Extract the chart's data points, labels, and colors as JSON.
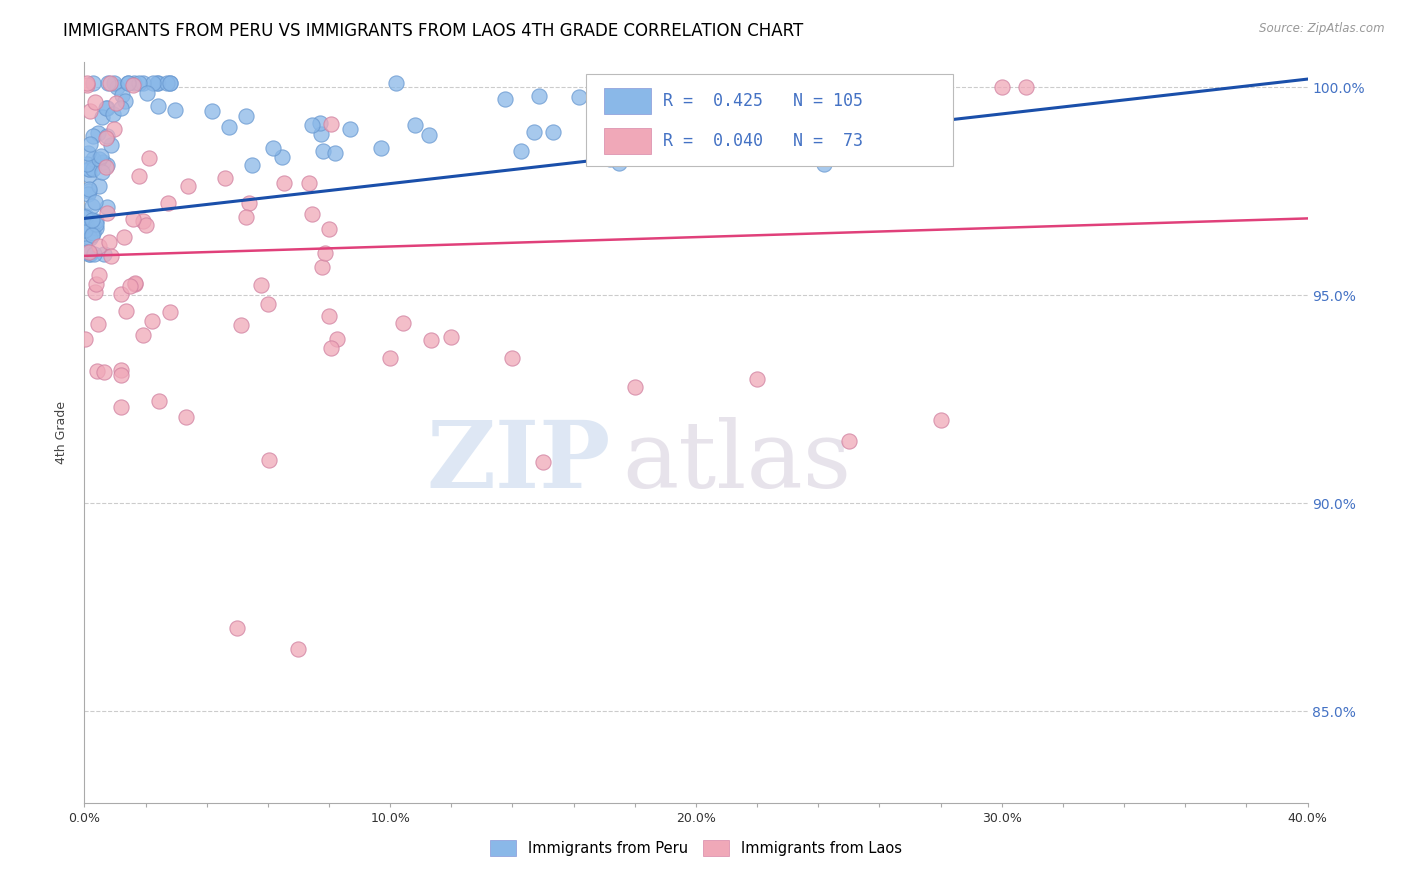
{
  "title": "IMMIGRANTS FROM PERU VS IMMIGRANTS FROM LAOS 4TH GRADE CORRELATION CHART",
  "source": "Source: ZipAtlas.com",
  "ylabel_label": "4th Grade",
  "xlim": [
    0.0,
    0.4
  ],
  "ylim": [
    0.828,
    1.006
  ],
  "xtick_labels": [
    "0.0%",
    "",
    "",
    "",
    "",
    "10.0%",
    "",
    "",
    "",
    "",
    "20.0%",
    "",
    "",
    "",
    "",
    "30.0%",
    "",
    "",
    "",
    "",
    "40.0%"
  ],
  "xtick_vals": [
    0.0,
    0.02,
    0.04,
    0.06,
    0.08,
    0.1,
    0.12,
    0.14,
    0.16,
    0.18,
    0.2,
    0.22,
    0.24,
    0.26,
    0.28,
    0.3,
    0.32,
    0.34,
    0.36,
    0.38,
    0.4
  ],
  "ytick_labels": [
    "85.0%",
    "90.0%",
    "95.0%",
    "100.0%"
  ],
  "ytick_vals": [
    0.85,
    0.9,
    0.95,
    1.0
  ],
  "legend_label1": "Immigrants from Peru",
  "legend_label2": "Immigrants from Laos",
  "R_peru": 0.425,
  "N_peru": 105,
  "R_laos": 0.04,
  "N_laos": 73,
  "color_peru": "#8ab8e8",
  "color_laos": "#f0a8b8",
  "line_color_peru": "#1a4faa",
  "line_color_laos": "#e0407a",
  "watermark_zip": "ZIP",
  "watermark_atlas": "atlas",
  "title_fontsize": 12,
  "axis_label_fontsize": 9,
  "tick_fontsize": 9,
  "peru_trend_x0": 0.0,
  "peru_trend_y0": 0.9685,
  "peru_trend_x1": 0.4,
  "peru_trend_y1": 1.002,
  "laos_trend_x0": 0.0,
  "laos_trend_y0": 0.9595,
  "laos_trend_x1": 0.4,
  "laos_trend_y1": 0.9685
}
